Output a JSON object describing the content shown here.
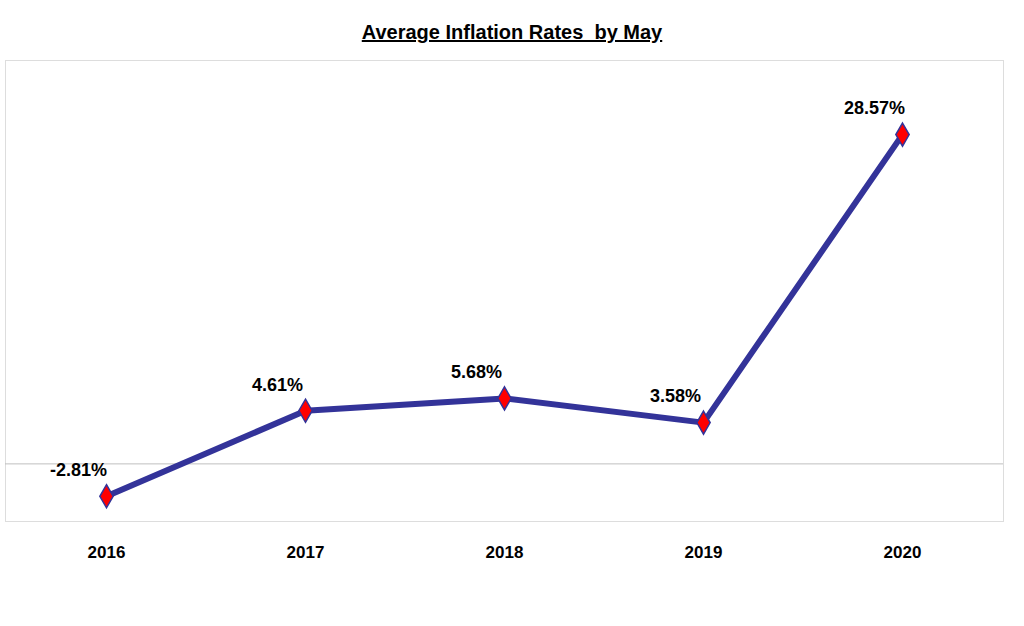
{
  "chart_data": {
    "type": "line",
    "title": "Average Inflation Rates  by May",
    "categories": [
      "2016",
      "2017",
      "2018",
      "2019",
      "2020"
    ],
    "values": [
      -2.81,
      4.61,
      5.68,
      3.58,
      28.57
    ],
    "value_labels": [
      "-2.81%",
      "4.61%",
      "5.68%",
      "3.58%",
      "28.57%"
    ],
    "color": "#333399",
    "marker": "diamond",
    "data_labels": true,
    "tick_labels": "x",
    "ylim": [
      -5,
      35
    ],
    "yticks": [
      0
    ],
    "grid": false
  }
}
